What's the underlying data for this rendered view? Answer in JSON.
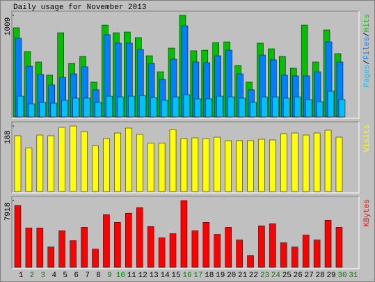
{
  "title": "Daily usage for November 2013",
  "legend_separator": "/",
  "categories": [
    "1",
    "2",
    "3",
    "4",
    "5",
    "6",
    "7",
    "8",
    "9",
    "10",
    "11",
    "12",
    "13",
    "14",
    "15",
    "16",
    "17",
    "18",
    "19",
    "20",
    "21",
    "22",
    "23",
    "24",
    "25",
    "26",
    "27",
    "28",
    "29",
    "30",
    "31"
  ],
  "category_colors": [
    "#000000",
    "#008000",
    "#008000",
    "#000000",
    "#000000",
    "#000000",
    "#000000",
    "#000000",
    "#008000",
    "#008000",
    "#000000",
    "#000000",
    "#000000",
    "#000000",
    "#000000",
    "#008000",
    "#008000",
    "#000000",
    "#000000",
    "#000000",
    "#000000",
    "#000000",
    "#008000",
    "#008000",
    "#000000",
    "#000000",
    "#000000",
    "#000000",
    "#000000",
    "#008000",
    "#008000"
  ],
  "chart_data": [
    {
      "type": "bar",
      "ylim": [
        0,
        1009
      ],
      "yticks": [
        1009
      ],
      "series": [
        {
          "name": "Pages",
          "color": "#00c0ff",
          "values": [
            207,
            131,
            145,
            138,
            166,
            187,
            187,
            145,
            207,
            200,
            207,
            214,
            193,
            166,
            200,
            221,
            180,
            180,
            207,
            200,
            187,
            145,
            200,
            200,
            187,
            200,
            173,
            152,
            256,
            173,
            null
          ]
        },
        {
          "name": "Files",
          "color": "#0080ff",
          "values": [
            781,
            504,
            422,
            318,
            394,
            428,
            498,
            270,
            816,
            733,
            733,
            670,
            532,
            373,
            574,
            905,
            546,
            539,
            608,
            663,
            428,
            270,
            615,
            567,
            415,
            408,
            408,
            449,
            746,
            546,
            null
          ]
        },
        {
          "name": "Hits",
          "color": "#00c000",
          "values": [
            885,
            650,
            546,
            415,
            836,
            532,
            601,
            346,
            912,
            836,
            843,
            788,
            608,
            449,
            684,
            1009,
            657,
            663,
            739,
            746,
            511,
            346,
            733,
            677,
            601,
            484,
            912,
            546,
            864,
            629,
            null
          ]
        }
      ]
    },
    {
      "type": "bar",
      "ylim": [
        0,
        188
      ],
      "yticks": [
        188
      ],
      "series": [
        {
          "name": "Visits",
          "color": "#ffff00",
          "values": [
            160,
            125,
            162,
            160,
            184,
            188,
            172,
            131,
            152,
            168,
            182,
            164,
            139,
            139,
            178,
            152,
            154,
            152,
            156,
            146,
            146,
            146,
            150,
            148,
            166,
            168,
            162,
            168,
            176,
            156,
            null
          ]
        }
      ]
    },
    {
      "type": "bar",
      "ylim": [
        0,
        7918
      ],
      "yticks": [
        7918
      ],
      "series": [
        {
          "name": "KBytes",
          "color": "#ff0000",
          "values": [
            7335,
            4668,
            4668,
            2417,
            4334,
            3167,
            4751,
            2167,
            6251,
            5334,
            6418,
            7084,
            4834,
            3500,
            4000,
            7918,
            4334,
            5334,
            3917,
            4751,
            3250,
            1417,
            4918,
            5168,
            2917,
            2417,
            3834,
            3250,
            5585,
            4751,
            null
          ]
        }
      ]
    }
  ]
}
